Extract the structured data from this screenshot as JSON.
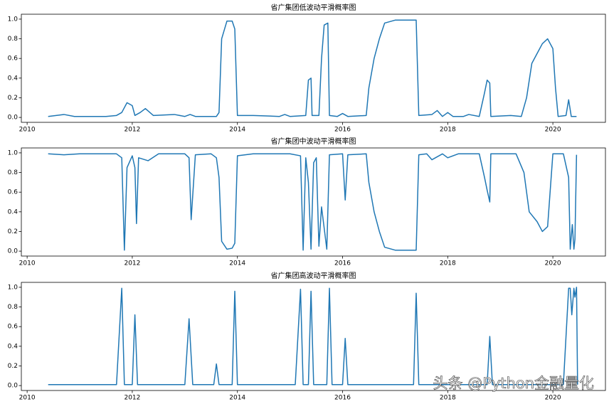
{
  "chart_data": [
    {
      "type": "line",
      "title": "省广集团低波动平滑概率图",
      "color": "#1f77b4",
      "x": [
        2010.4,
        2010.7,
        2010.9,
        2011.5,
        2011.7,
        2011.8,
        2011.9,
        2012.0,
        2012.05,
        2012.15,
        2012.25,
        2012.4,
        2012.8,
        2013.0,
        2013.1,
        2013.2,
        2013.6,
        2013.65,
        2013.7,
        2013.8,
        2013.9,
        2013.95,
        2014.0,
        2014.3,
        2014.8,
        2014.9,
        2015.0,
        2015.3,
        2015.35,
        2015.4,
        2015.42,
        2015.55,
        2015.6,
        2015.65,
        2015.72,
        2015.75,
        2015.9,
        2016.0,
        2016.1,
        2016.45,
        2016.5,
        2016.6,
        2016.7,
        2016.8,
        2017.0,
        2017.4,
        2017.45,
        2017.7,
        2017.8,
        2017.9,
        2018.0,
        2018.1,
        2018.3,
        2018.4,
        2018.6,
        2018.7,
        2018.75,
        2018.8,
        2018.82,
        2019.2,
        2019.4,
        2019.5,
        2019.6,
        2019.7,
        2019.8,
        2019.9,
        2020.0,
        2020.05,
        2020.1,
        2020.25,
        2020.3,
        2020.35,
        2020.45
      ],
      "values": [
        0.01,
        0.03,
        0.01,
        0.01,
        0.02,
        0.05,
        0.15,
        0.12,
        0.02,
        0.05,
        0.09,
        0.02,
        0.03,
        0.01,
        0.03,
        0.01,
        0.01,
        0.05,
        0.8,
        0.98,
        0.98,
        0.9,
        0.02,
        0.02,
        0.01,
        0.03,
        0.01,
        0.02,
        0.38,
        0.4,
        0.02,
        0.02,
        0.6,
        0.94,
        0.96,
        0.02,
        0.01,
        0.04,
        0.01,
        0.02,
        0.3,
        0.6,
        0.8,
        0.96,
        0.99,
        0.99,
        0.02,
        0.03,
        0.07,
        0.01,
        0.05,
        0.01,
        0.01,
        0.03,
        0.01,
        0.25,
        0.38,
        0.35,
        0.01,
        0.02,
        0.01,
        0.2,
        0.55,
        0.65,
        0.75,
        0.8,
        0.7,
        0.3,
        0.01,
        0.02,
        0.18,
        0.01,
        0.01
      ],
      "xlim": [
        2009.89,
        2021.0
      ],
      "xticks": [
        2010,
        2012,
        2014,
        2016,
        2018,
        2020
      ],
      "ylim": [
        -0.05,
        1.05
      ],
      "yticks": [
        {
          "value": 0,
          "label": "0.0"
        },
        0.2,
        0.4,
        0.6,
        0.8,
        {
          "value": 1,
          "label": "1.0"
        }
      ]
    },
    {
      "type": "line",
      "title": "省广集团中波动平滑概率图",
      "color": "#1f77b4",
      "x": [
        2010.4,
        2010.7,
        2011.0,
        2011.7,
        2011.8,
        2011.85,
        2011.9,
        2012.0,
        2012.05,
        2012.08,
        2012.12,
        2012.3,
        2012.5,
        2013.0,
        2013.08,
        2013.12,
        2013.2,
        2013.5,
        2013.6,
        2013.65,
        2013.7,
        2013.8,
        2013.9,
        2013.95,
        2014.0,
        2014.3,
        2015.0,
        2015.2,
        2015.25,
        2015.3,
        2015.35,
        2015.4,
        2015.45,
        2015.5,
        2015.55,
        2015.6,
        2015.7,
        2015.75,
        2016.0,
        2016.05,
        2016.1,
        2016.45,
        2016.5,
        2016.6,
        2016.7,
        2016.8,
        2017.0,
        2017.4,
        2017.45,
        2017.6,
        2017.7,
        2017.9,
        2018.0,
        2018.2,
        2018.6,
        2018.7,
        2018.75,
        2018.8,
        2018.82,
        2019.3,
        2019.45,
        2019.55,
        2019.7,
        2019.8,
        2019.9,
        2020.0,
        2020.2,
        2020.3,
        2020.33,
        2020.37,
        2020.4,
        2020.42,
        2020.45
      ],
      "values": [
        0.99,
        0.98,
        0.99,
        0.99,
        0.95,
        0.01,
        0.85,
        0.97,
        0.85,
        0.28,
        0.95,
        0.92,
        0.99,
        0.99,
        0.95,
        0.32,
        0.98,
        0.99,
        0.95,
        0.75,
        0.1,
        0.02,
        0.03,
        0.08,
        0.97,
        0.99,
        0.99,
        0.97,
        0.01,
        0.95,
        0.7,
        0.02,
        0.9,
        0.95,
        0.05,
        0.45,
        0.02,
        0.98,
        0.99,
        0.52,
        0.98,
        0.99,
        0.7,
        0.4,
        0.2,
        0.04,
        0.01,
        0.01,
        0.98,
        0.99,
        0.93,
        0.99,
        0.95,
        0.99,
        0.99,
        0.75,
        0.62,
        0.5,
        0.99,
        0.99,
        0.8,
        0.4,
        0.3,
        0.2,
        0.25,
        0.99,
        0.99,
        0.75,
        0.02,
        0.27,
        0.02,
        0.12,
        0.98
      ],
      "xlim": [
        2009.89,
        2021.0
      ],
      "xticks": [
        2010,
        2012,
        2014,
        2016,
        2018,
        2020
      ],
      "ylim": [
        -0.05,
        1.05
      ],
      "yticks": [
        {
          "value": 0,
          "label": "0.0"
        },
        0.2,
        0.4,
        0.6,
        0.8,
        {
          "value": 1,
          "label": "1.0"
        }
      ]
    },
    {
      "type": "line",
      "title": "省广集团高波动平滑概率图",
      "color": "#1f77b4",
      "x": [
        2010.4,
        2011.7,
        2011.8,
        2011.85,
        2012.0,
        2012.05,
        2012.1,
        2013.0,
        2013.08,
        2013.15,
        2013.55,
        2013.6,
        2013.65,
        2013.9,
        2013.95,
        2014.0,
        2015.1,
        2015.2,
        2015.25,
        2015.35,
        2015.4,
        2015.45,
        2015.7,
        2015.75,
        2015.8,
        2016.0,
        2016.05,
        2016.1,
        2017.35,
        2017.4,
        2017.45,
        2018.75,
        2018.8,
        2018.85,
        2020.2,
        2020.3,
        2020.33,
        2020.36,
        2020.4,
        2020.42,
        2020.45,
        2020.47
      ],
      "values": [
        0.01,
        0.01,
        0.99,
        0.01,
        0.01,
        0.72,
        0.01,
        0.01,
        0.68,
        0.01,
        0.01,
        0.22,
        0.01,
        0.01,
        0.96,
        0.01,
        0.01,
        0.98,
        0.01,
        0.01,
        0.96,
        0.01,
        0.01,
        0.99,
        0.01,
        0.01,
        0.48,
        0.01,
        0.01,
        0.94,
        0.01,
        0.01,
        0.5,
        0.01,
        0.01,
        0.99,
        0.99,
        0.72,
        0.99,
        0.9,
        1.0,
        0.01
      ],
      "xlim": [
        2009.89,
        2021.0
      ],
      "xticks": [
        2010,
        2012,
        2014,
        2016,
        2018,
        2020
      ],
      "ylim": [
        -0.05,
        1.05
      ],
      "yticks": [
        {
          "value": 0,
          "label": "0.0"
        },
        0.2,
        0.4,
        0.6,
        0.8,
        {
          "value": 1,
          "label": "1.0"
        }
      ]
    }
  ],
  "watermark": "头条 @Python金融量化"
}
